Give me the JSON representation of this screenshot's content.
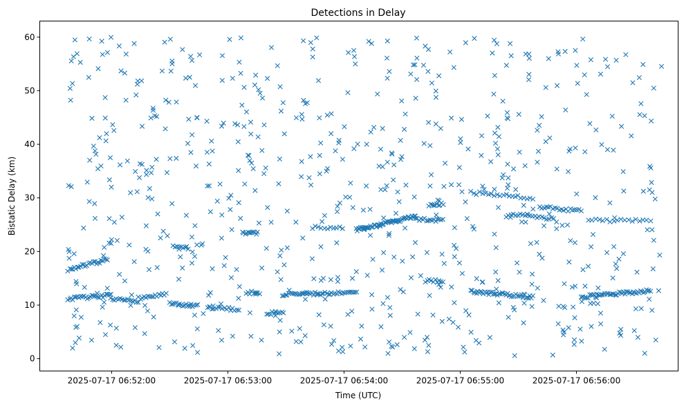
{
  "chart_data": {
    "type": "scatter",
    "title": "Detections in Delay",
    "xlabel": "Time (UTC)",
    "ylabel": "Bistatic Delay (km)",
    "x_units": "seconds after 2025-07-17 06:51:00",
    "xlim": [
      82.9,
      412.5
    ],
    "ylim": [
      -2.3,
      63
    ],
    "marker": "x",
    "color": "#1f77b4",
    "grid": false,
    "xticks": [
      {
        "value": 120,
        "label": "2025-07-17 06:52:00"
      },
      {
        "value": 180,
        "label": "2025-07-17 06:53:00"
      },
      {
        "value": 240,
        "label": "2025-07-17 06:54:00"
      },
      {
        "value": 300,
        "label": "2025-07-17 06:55:00"
      },
      {
        "value": 360,
        "label": "2025-07-17 06:56:00"
      }
    ],
    "yticks": [
      {
        "value": 0,
        "label": "0"
      },
      {
        "value": 10,
        "label": "10"
      },
      {
        "value": 20,
        "label": "20"
      },
      {
        "value": 30,
        "label": "30"
      },
      {
        "value": 40,
        "label": "40"
      },
      {
        "value": 50,
        "label": "50"
      },
      {
        "value": 60,
        "label": "60"
      }
    ],
    "tracks": [
      {
        "t": [
          97.5,
          117.9
        ],
        "y": [
          16.6,
          18.5
        ],
        "n": 26
      },
      {
        "t": [
          97.5,
          119.6
        ],
        "y": [
          11.2,
          11.8
        ],
        "n": 28
      },
      {
        "t": [
          119.6,
          133.9
        ],
        "y": [
          11.0,
          10.8
        ],
        "n": 16
      },
      {
        "t": [
          133.9,
          148.2
        ],
        "y": [
          11.3,
          12.0
        ],
        "n": 16
      },
      {
        "t": [
          150.0,
          164.3
        ],
        "y": [
          10.2,
          9.8
        ],
        "n": 18
      },
      {
        "t": [
          151.8,
          158.9
        ],
        "y": [
          20.8,
          20.8
        ],
        "n": 8
      },
      {
        "t": [
          169.6,
          185.7
        ],
        "y": [
          9.5,
          9.2
        ],
        "n": 16
      },
      {
        "t": [
          187.5,
          195.4
        ],
        "y": [
          23.5,
          23.5
        ],
        "n": 12
      },
      {
        "t": [
          189.3,
          196.4
        ],
        "y": [
          12.3,
          12.3
        ],
        "n": 8
      },
      {
        "t": [
          200.0,
          208.9
        ],
        "y": [
          8.5,
          8.5
        ],
        "n": 10
      },
      {
        "t": [
          208.9,
          246.4
        ],
        "y": [
          12.0,
          12.3
        ],
        "n": 45
      },
      {
        "t": [
          225.0,
          239.3
        ],
        "y": [
          24.5,
          24.5
        ],
        "n": 10
      },
      {
        "t": [
          246.4,
          276.8
        ],
        "y": [
          24.0,
          26.5
        ],
        "n": 55
      },
      {
        "t": [
          276.8,
          291.1
        ],
        "y": [
          26.0,
          25.8
        ],
        "n": 16
      },
      {
        "t": [
          282.1,
          291.1
        ],
        "y": [
          14.5,
          14.5
        ],
        "n": 10
      },
      {
        "t": [
          283.9,
          291.1
        ],
        "y": [
          28.5,
          29.0
        ],
        "n": 10
      },
      {
        "t": [
          305.4,
          337.5
        ],
        "y": [
          12.5,
          11.5
        ],
        "n": 45
      },
      {
        "t": [
          305.4,
          337.5
        ],
        "y": [
          31.0,
          30.0
        ],
        "n": 22
      },
      {
        "t": [
          325.0,
          348.2
        ],
        "y": [
          27.0,
          26.0
        ],
        "n": 20
      },
      {
        "t": [
          341.1,
          362.5
        ],
        "y": [
          28.3,
          27.5
        ],
        "n": 20
      },
      {
        "t": [
          362.5,
          398.2
        ],
        "y": [
          11.5,
          12.7
        ],
        "n": 50
      },
      {
        "t": [
          366.1,
          398.2
        ],
        "y": [
          25.8,
          25.8
        ],
        "n": 18
      }
    ],
    "background": {
      "t": [
        97.5,
        405
      ],
      "y": [
        0.5,
        60
      ],
      "n": 720,
      "seed": 7
    }
  }
}
